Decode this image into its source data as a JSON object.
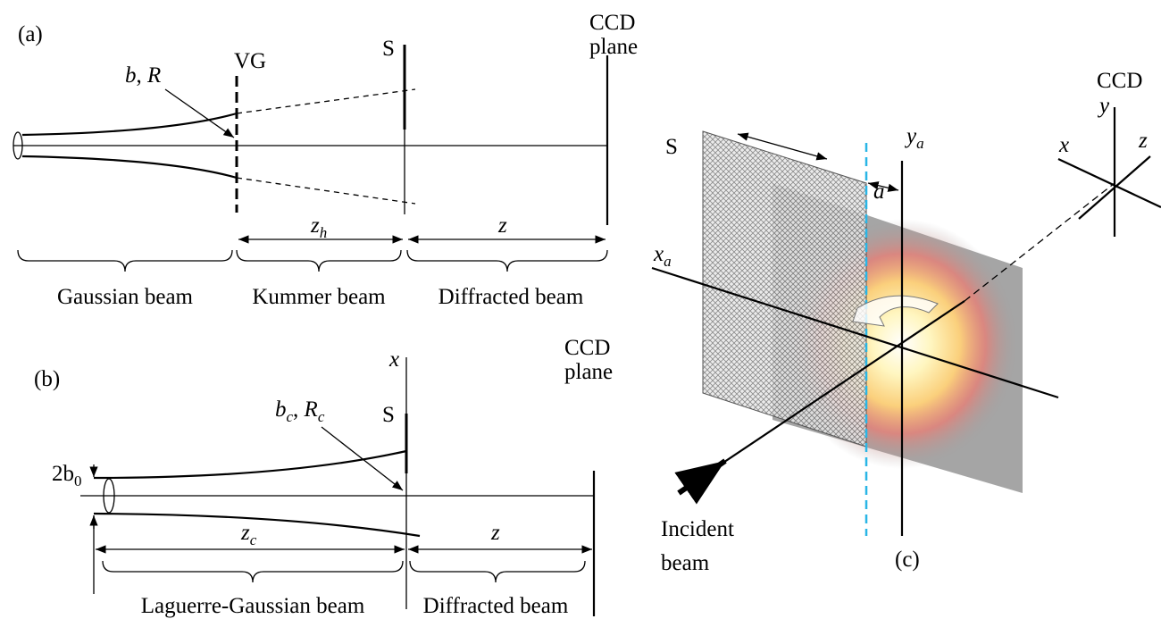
{
  "panel_a": {
    "label": "(a)",
    "ccd_label": [
      "CCD",
      "plane"
    ],
    "grating": "VG",
    "screen": "S",
    "beam_params": [
      "b",
      ", ",
      "R"
    ],
    "distance_h": [
      "z",
      "h"
    ],
    "distance": "z",
    "sections": [
      "Gaussian beam",
      "Kummer beam",
      "Diffracted beam"
    ]
  },
  "panel_b": {
    "label": "(b)",
    "axis": "x",
    "screen": "S",
    "ccd_label": [
      "CCD",
      "plane"
    ],
    "beam_params": [
      "b",
      "c",
      ", ",
      "R",
      "c"
    ],
    "waist": [
      "2b",
      "0"
    ],
    "distance_c": [
      "z",
      "c"
    ],
    "distance": "z",
    "sections": [
      "Laguerre-Gaussian beam",
      "Diffracted beam"
    ]
  },
  "panel_c": {
    "label": "(c)",
    "ccd": "CCD",
    "ccd_axes": [
      "y",
      "x",
      "z"
    ],
    "screen": "S",
    "offset": "a",
    "screen_axes": {
      "y": [
        "y",
        "a"
      ],
      "x": [
        "x",
        "a"
      ]
    },
    "incident": [
      "Incident",
      "beam"
    ]
  }
}
